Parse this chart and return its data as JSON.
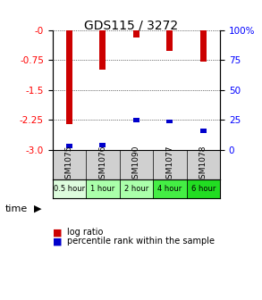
{
  "title": "GDS115 / 3272",
  "samples": [
    "GSM1075",
    "GSM1076",
    "GSM1090",
    "GSM1077",
    "GSM1078"
  ],
  "time_labels": [
    "0.5 hour",
    "1 hour",
    "2 hour",
    "4 hour",
    "6 hour"
  ],
  "time_colors": [
    "#ddfcdd",
    "#aaffaa",
    "#aaffaa",
    "#44ee44",
    "#22dd22"
  ],
  "log_ratios": [
    -2.35,
    -1.0,
    -0.18,
    -0.52,
    -0.78
  ],
  "percentile_ranks": [
    3.5,
    4.0,
    25.0,
    24.0,
    16.0
  ],
  "bar_color_red": "#cc0000",
  "bar_color_blue": "#0000cc",
  "ylim_left": [
    -3.0,
    0.0
  ],
  "ylim_right": [
    0,
    100
  ],
  "yticks_left": [
    0.0,
    -0.75,
    -1.5,
    -2.25,
    -3.0
  ],
  "yticks_right": [
    0,
    25,
    50,
    75,
    100
  ],
  "bg_color": "#d0d0d0",
  "plot_bg": "#ffffff",
  "legend_log_ratio": "log ratio",
  "legend_percentile": "percentile rank within the sample",
  "time_label": "time"
}
